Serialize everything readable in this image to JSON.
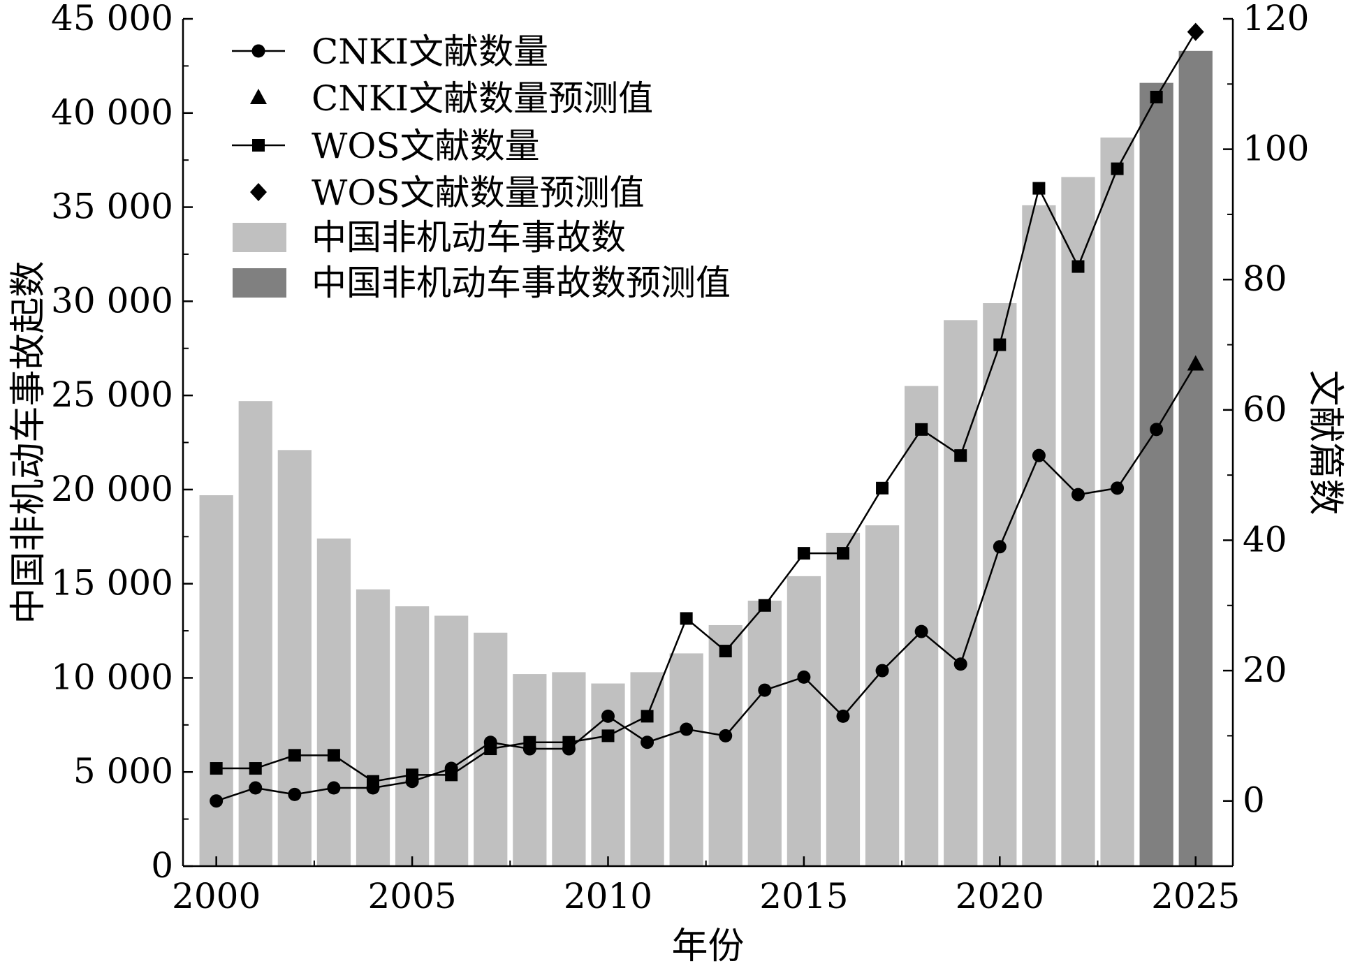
{
  "chart_data": {
    "type": "bar+line",
    "x_label": "年份",
    "y_left_label": "中国非机动车事故起数",
    "y_right_label": "文献篇数",
    "x_ticks": [
      "2000",
      "2005",
      "2010",
      "2015",
      "2020",
      "2025"
    ],
    "y_left_ticks": [
      "0",
      "5 000",
      "10 000",
      "15 000",
      "20 000",
      "25 000",
      "30 000",
      "35 000",
      "40 000",
      "45 000"
    ],
    "y_right_ticks": [
      "0",
      "20",
      "40",
      "60",
      "80",
      "100",
      "120"
    ],
    "y_left_range": [
      0,
      45000
    ],
    "y_right_range": [
      -10,
      120
    ],
    "x_range": [
      1999.15,
      2025.95
    ],
    "years": [
      2000,
      2001,
      2002,
      2003,
      2004,
      2005,
      2006,
      2007,
      2008,
      2009,
      2010,
      2011,
      2012,
      2013,
      2014,
      2015,
      2016,
      2017,
      2018,
      2019,
      2020,
      2021,
      2022,
      2023,
      2024,
      2025
    ],
    "accidents": [
      19700,
      24700,
      22100,
      17400,
      14700,
      13800,
      13300,
      12400,
      10200,
      10300,
      9700,
      10300,
      11300,
      12800,
      14100,
      15400,
      17700,
      18100,
      25500,
      29000,
      29900,
      35100,
      36600,
      38700,
      41600,
      43300
    ],
    "accidents_predicted_years": [
      2024,
      2025
    ],
    "cnki": [
      0,
      2,
      1,
      2,
      2,
      3,
      5,
      9,
      8,
      8,
      13,
      9,
      11,
      10,
      17,
      19,
      13,
      20,
      26,
      21,
      39,
      53,
      47,
      48,
      57
    ],
    "cnki_predicted": {
      "year": 2025,
      "value": 67
    },
    "wos": [
      5,
      5,
      7,
      7,
      3,
      4,
      4,
      8,
      9,
      9,
      10,
      13,
      28,
      23,
      30,
      38,
      38,
      48,
      57,
      53,
      70,
      94,
      82,
      97,
      108
    ],
    "wos_predicted": {
      "year": 2025,
      "value": 118
    },
    "legend": [
      {
        "label": "CNKI文献数量",
        "marker": "circle-line"
      },
      {
        "label": "CNKI文献数量预测值",
        "marker": "triangle"
      },
      {
        "label": "WOS文献数量",
        "marker": "square-line"
      },
      {
        "label": "WOS文献数量预测值",
        "marker": "diamond"
      },
      {
        "label": "中国非机动车事故数",
        "marker": "bar-light"
      },
      {
        "label": "中国非机动车事故数预测值",
        "marker": "bar-dark"
      }
    ],
    "colors": {
      "bar": "#c0c0c0",
      "bar_predicted": "#808080",
      "line": "#000000"
    },
    "legend_position": "top-left",
    "grid": false
  }
}
